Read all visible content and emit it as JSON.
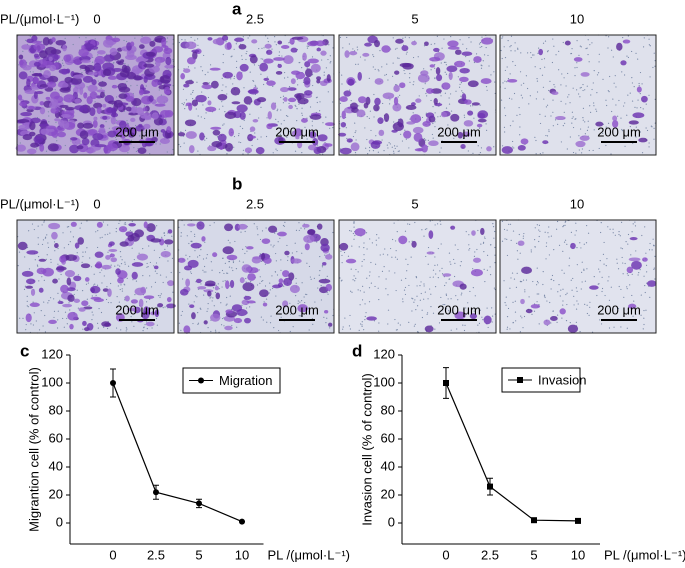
{
  "panels": [
    {
      "letter": "a",
      "axis_label": "PL/(μmol·L⁻¹)",
      "concentrations": [
        "0",
        "2.5",
        "5",
        "10"
      ],
      "scale_bars": [
        "200 μm",
        "200 μm",
        "200 μm",
        "200 μm"
      ]
    },
    {
      "letter": "b",
      "axis_label": "PL/(μmol·L⁻¹)",
      "concentrations": [
        "0",
        "2.5",
        "5",
        "10"
      ],
      "scale_bars": [
        "200 μm",
        "200 μm",
        "200 μm",
        "200 μm"
      ]
    }
  ],
  "chart_data": [
    {
      "type": "line",
      "letter": "c",
      "ylabel": "Migrantion cell (% of control)",
      "xlabel": "PL /(μmol·L⁻¹)",
      "categories": [
        "0",
        "2.5",
        "5",
        "10"
      ],
      "series": [
        {
          "name": "Migration",
          "color": "#000000",
          "marker": "circle",
          "values": [
            100,
            22,
            14,
            1
          ],
          "errors": [
            10,
            5,
            3,
            0
          ]
        }
      ],
      "ylim": [
        -15,
        120
      ],
      "yticks": [
        0,
        20,
        40,
        60,
        80,
        100,
        120
      ]
    },
    {
      "type": "line",
      "letter": "d",
      "ylabel": "Invasion cell (% of control)",
      "xlabel": "PL /(μmol·L⁻¹)",
      "categories": [
        "0",
        "2.5",
        "5",
        "10"
      ],
      "series": [
        {
          "name": "Invasion",
          "color": "#000000",
          "marker": "square",
          "values": [
            100,
            26,
            2,
            1.5
          ],
          "errors": [
            11,
            6,
            0,
            0
          ]
        }
      ],
      "ylim": [
        -15,
        120
      ],
      "yticks": [
        0,
        20,
        40,
        60,
        80,
        100,
        120
      ]
    }
  ]
}
